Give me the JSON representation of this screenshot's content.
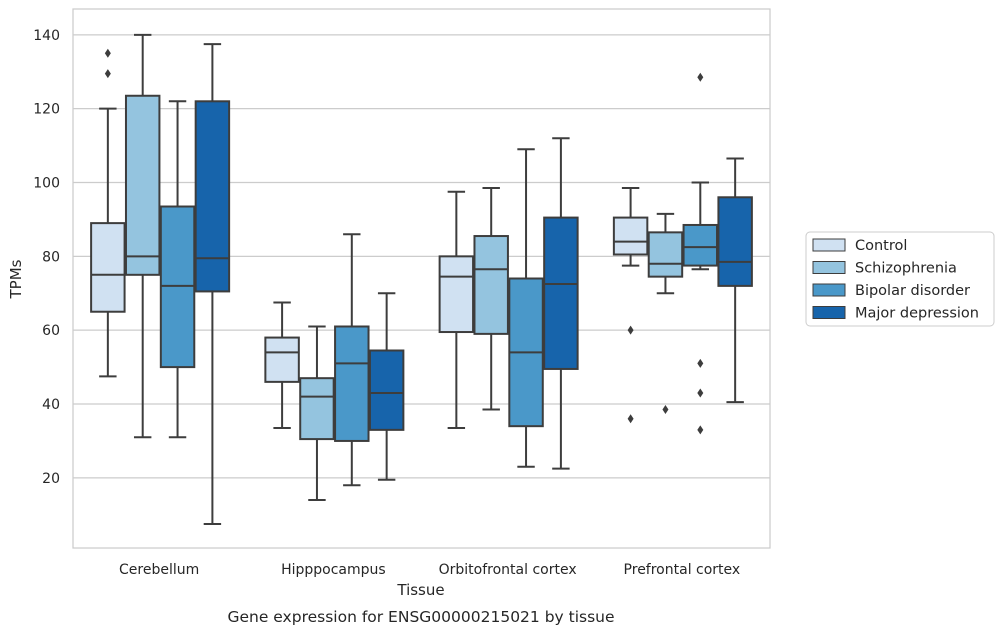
{
  "chart_data": {
    "type": "boxplot",
    "title": "",
    "caption": "Gene expression for ENSG00000215021 by tissue",
    "xlabel": "Tissue",
    "ylabel": "TPMs",
    "ylim": [
      1,
      147
    ],
    "yticks": [
      20,
      40,
      60,
      80,
      100,
      120,
      140
    ],
    "grid": "horizontal",
    "legend_position": "right",
    "categories": [
      "Cerebellum",
      "Hipppocampus",
      "Orbitofrontal cortex",
      "Prefrontal cortex"
    ],
    "series": [
      {
        "name": "Control",
        "color": "#d0e1f2",
        "boxes": [
          {
            "whisker_low": 47.5,
            "q1": 65,
            "median": 75,
            "q3": 89,
            "whisker_high": 120,
            "outliers": [
              135,
              129.5
            ]
          },
          {
            "whisker_low": 33.5,
            "q1": 46,
            "median": 54,
            "q3": 58,
            "whisker_high": 67.5,
            "outliers": []
          },
          {
            "whisker_low": 33.5,
            "q1": 59.5,
            "median": 74.5,
            "q3": 80,
            "whisker_high": 97.5,
            "outliers": []
          },
          {
            "whisker_low": 77.5,
            "q1": 80.5,
            "median": 84,
            "q3": 90.5,
            "whisker_high": 98.5,
            "outliers": [
              60,
              36
            ]
          }
        ]
      },
      {
        "name": "Schizophrenia",
        "color": "#94c4df",
        "boxes": [
          {
            "whisker_low": 31,
            "q1": 75,
            "median": 80,
            "q3": 123.5,
            "whisker_high": 140,
            "outliers": []
          },
          {
            "whisker_low": 14,
            "q1": 30.5,
            "median": 42,
            "q3": 47,
            "whisker_high": 61,
            "outliers": []
          },
          {
            "whisker_low": 38.5,
            "q1": 59,
            "median": 76.5,
            "q3": 85.5,
            "whisker_high": 98.5,
            "outliers": []
          },
          {
            "whisker_low": 70,
            "q1": 74.5,
            "median": 78,
            "q3": 86.5,
            "whisker_high": 91.5,
            "outliers": [
              38.5
            ]
          }
        ]
      },
      {
        "name": "Bipolar disorder",
        "color": "#4a98c9",
        "boxes": [
          {
            "whisker_low": 31,
            "q1": 50,
            "median": 72,
            "q3": 93.5,
            "whisker_high": 122,
            "outliers": []
          },
          {
            "whisker_low": 18,
            "q1": 30,
            "median": 51,
            "q3": 61,
            "whisker_high": 86,
            "outliers": []
          },
          {
            "whisker_low": 23,
            "q1": 34,
            "median": 54,
            "q3": 74,
            "whisker_high": 109,
            "outliers": []
          },
          {
            "whisker_low": 76.5,
            "q1": 77.5,
            "median": 82.5,
            "q3": 88.5,
            "whisker_high": 100,
            "outliers": [
              128.5,
              51,
              43,
              33
            ]
          }
        ]
      },
      {
        "name": "Major depression",
        "color": "#1764ab",
        "boxes": [
          {
            "whisker_low": 7.5,
            "q1": 70.5,
            "median": 79.5,
            "q3": 122,
            "whisker_high": 137.5,
            "outliers": []
          },
          {
            "whisker_low": 19.5,
            "q1": 33,
            "median": 43,
            "q3": 54.5,
            "whisker_high": 70,
            "outliers": []
          },
          {
            "whisker_low": 22.5,
            "q1": 49.5,
            "median": 72.5,
            "q3": 90.5,
            "whisker_high": 112,
            "outliers": []
          },
          {
            "whisker_low": 40.5,
            "q1": 72,
            "median": 78.5,
            "q3": 96,
            "whisker_high": 106.5,
            "outliers": []
          }
        ]
      }
    ]
  }
}
